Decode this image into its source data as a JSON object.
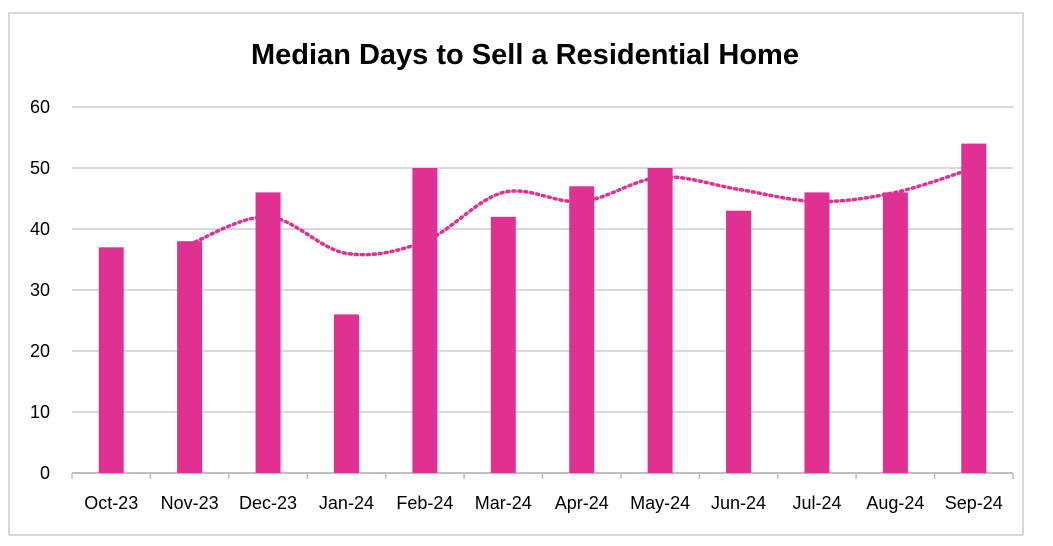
{
  "chart_data": {
    "type": "bar",
    "title": "Median Days to Sell a Residential Home",
    "xlabel": "",
    "ylabel": "",
    "categories": [
      "Oct-23",
      "Nov-23",
      "Dec-23",
      "Jan-24",
      "Feb-24",
      "Mar-24",
      "Apr-24",
      "May-24",
      "Jun-24",
      "Jul-24",
      "Aug-24",
      "Sep-24"
    ],
    "series": [
      {
        "type": "bar",
        "values": [
          37,
          38,
          46,
          26,
          50,
          42,
          47,
          50,
          43,
          46,
          46,
          54
        ],
        "color": "#e03192"
      }
    ],
    "trendline": {
      "type": "moving-average",
      "period": 2,
      "style": "dotted",
      "color": "#e03192"
    },
    "ylim": [
      0,
      60
    ],
    "yticks": [
      0,
      10,
      20,
      30,
      40,
      50,
      60
    ],
    "grid": true,
    "legend": "none"
  }
}
